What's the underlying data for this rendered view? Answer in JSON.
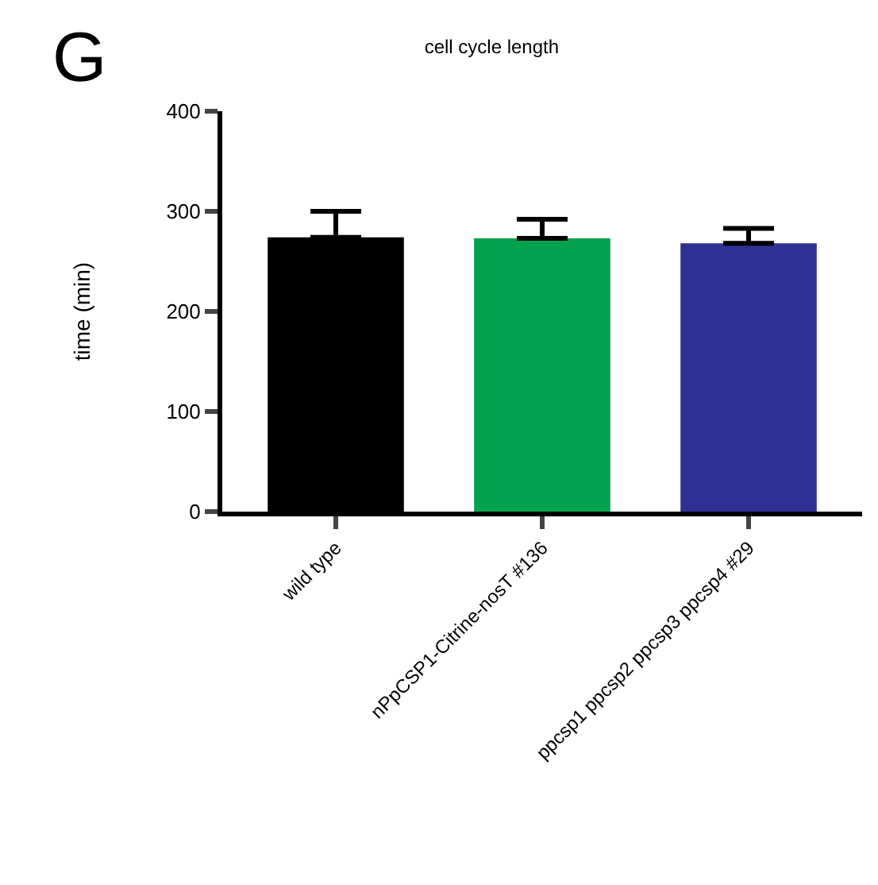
{
  "chart_data": {
    "type": "bar",
    "title": "cell cycle length",
    "ylabel": "time (min)",
    "categories": [
      "wild type",
      "nPpCSP1-Citrine-nosT #136",
      "ppcsp1 ppcsp2 ppcsp3 ppcsp4 #29"
    ],
    "values": [
      274,
      273,
      268
    ],
    "colors": [
      "#000000",
      "#00a250",
      "#2e3192"
    ],
    "errors": [
      [
        274,
        300
      ],
      [
        273,
        292
      ],
      [
        268,
        283
      ]
    ],
    "ylim": [
      0,
      400
    ],
    "yticks": [
      0,
      100,
      200,
      300,
      400
    ],
    "annotations": [
      "G"
    ]
  }
}
